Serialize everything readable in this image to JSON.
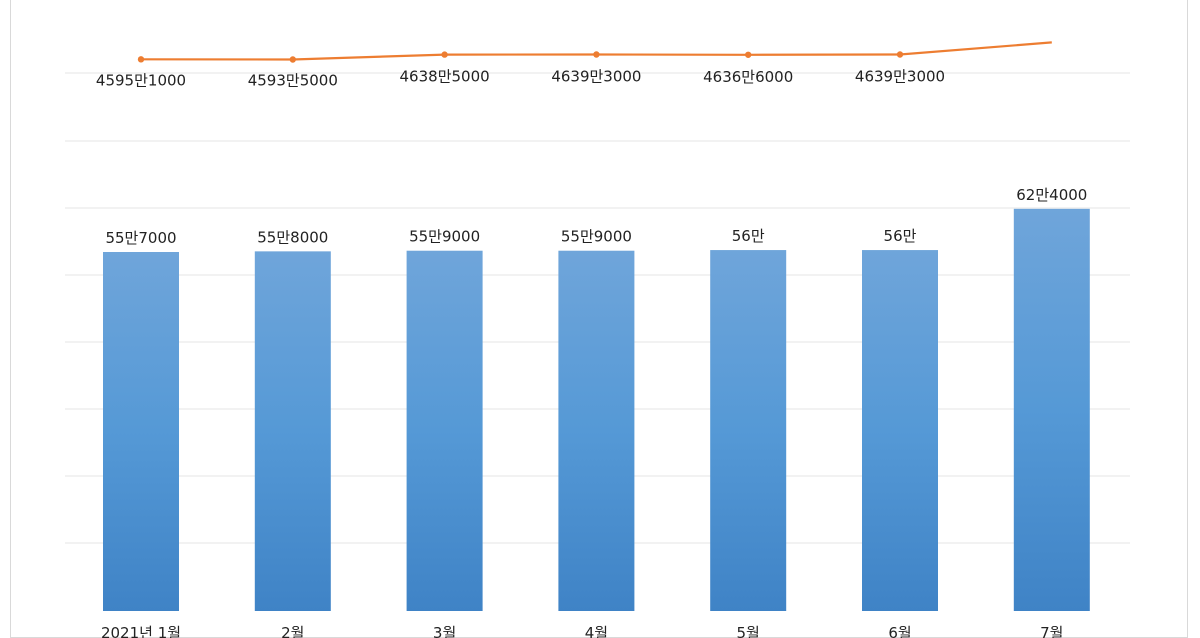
{
  "chart_data": {
    "type": "bar",
    "categories": [
      "2021년 1월",
      "2월",
      "3월",
      "4월",
      "5월",
      "6월",
      "7월"
    ],
    "series": [
      {
        "type": "bar",
        "values": [
          557000,
          558000,
          559000,
          559000,
          560000,
          560000,
          624000
        ],
        "value_labels": [
          "55만7000",
          "55만8000",
          "55만9000",
          "55만9000",
          "56만",
          "56만",
          "62만4000"
        ],
        "color": "#5b9bd5"
      },
      {
        "type": "line",
        "values": [
          45951000,
          45935000,
          46385000,
          46393000,
          46366000,
          46393000,
          47500000
        ],
        "value_labels": [
          "4595만1000",
          "4593만5000",
          "4638만5000",
          "4639만3000",
          "4636만6000",
          "4639만3000",
          ""
        ],
        "color": "#ed7d31"
      }
    ],
    "grid": true,
    "legend": "none"
  }
}
